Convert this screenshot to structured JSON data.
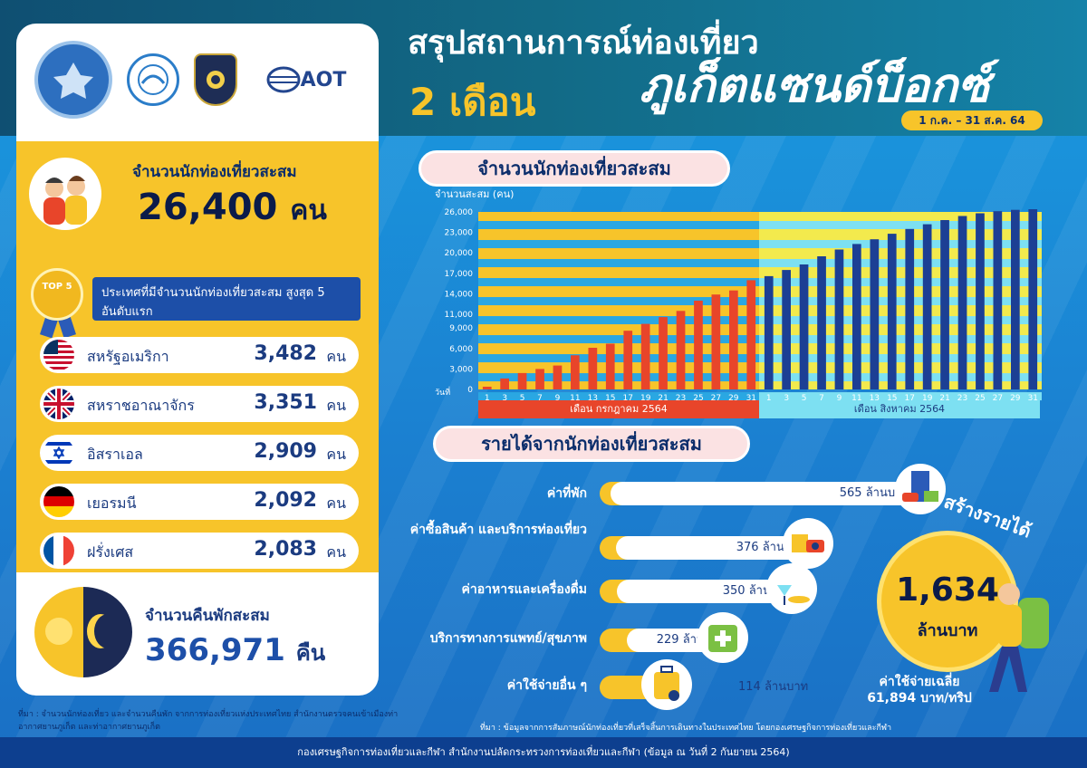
{
  "title": {
    "line1": "สรุปสถานการณ์ท่องเที่ยว",
    "months": "2 เดือน",
    "sandbox": "ภูเก็ตแซนด์บ็อกซ์",
    "date_range": "1 ก.ค. – 31 ส.ค. 64"
  },
  "logos": {
    "aot": "AOT"
  },
  "tourists": {
    "label": "จำนวนนักท่องเที่ยวสะสม",
    "value": "26,400",
    "unit": "คน"
  },
  "top5": {
    "badge": "TOP 5",
    "banner": "ประเทศที่มีจำนวนนักท่องเที่ยวสะสม สูงสุด 5 อันดับแรก",
    "countries": [
      {
        "name": "สหรัฐอเมริกา",
        "value": "3,482",
        "unit": "คน",
        "flag": "usa-flag"
      },
      {
        "name": "สหราชอาณาจักร",
        "value": "3,351",
        "unit": "คน",
        "flag": "uk-flag"
      },
      {
        "name": "อิสราเอล",
        "value": "2,909",
        "unit": "คน",
        "flag": "israel-flag"
      },
      {
        "name": "เยอรมนี",
        "value": "2,092",
        "unit": "คน",
        "flag": "germany-flag"
      },
      {
        "name": "ฝรั่งเศส",
        "value": "2,083",
        "unit": "คน",
        "flag": "france-flag"
      }
    ]
  },
  "nights": {
    "label": "จำนวนคืนพักสะสม",
    "value": "366,971",
    "unit": "คืน"
  },
  "source_left": "ที่มา : จำนวนนักท่องเที่ยว และจำนวนคืนพัก จากการท่องเที่ยวแห่งประเทศไทย สำนักงานตรวจคนเข้าเมืองท่าอากาศยานภูเก็ต และท่าอากาศยานภูเก็ต",
  "chart_section_title": "จำนวนนักท่องเที่ยวสะสม",
  "revenue_section_title": "รายได้จากนักท่องเที่ยวสะสม",
  "chart_data": {
    "type": "bar",
    "ylabel": "จำนวนสะสม (คน)",
    "xlabel": "วันที่",
    "ylim": [
      0,
      26000
    ],
    "yticks": [
      "0",
      "3,000",
      "6,000",
      "9,000",
      "11,000",
      "14,000",
      "17,000",
      "20,000",
      "23,000",
      "26,000"
    ],
    "categories": [
      "1",
      "3",
      "5",
      "7",
      "9",
      "11",
      "13",
      "15",
      "17",
      "19",
      "21",
      "23",
      "25",
      "27",
      "29",
      "31",
      "1",
      "3",
      "5",
      "7",
      "9",
      "11",
      "13",
      "15",
      "17",
      "19",
      "21",
      "23",
      "25",
      "27",
      "29",
      "31"
    ],
    "series": [
      {
        "name": "เดือน กรกฎาคม 2564",
        "color": "#e8452a",
        "values": [
          400,
          1600,
          2400,
          3000,
          3500,
          5000,
          6100,
          6700,
          8600,
          9600,
          10600,
          11500,
          13000,
          13900,
          14500,
          16000,
          null,
          null,
          null,
          null,
          null,
          null,
          null,
          null,
          null,
          null,
          null,
          null,
          null,
          null,
          null,
          null
        ]
      },
      {
        "name": "เดือน สิงหาคม 2564",
        "color": "#1c3f94",
        "values": [
          null,
          null,
          null,
          null,
          null,
          null,
          null,
          null,
          null,
          null,
          null,
          null,
          null,
          null,
          null,
          null,
          16600,
          17500,
          18300,
          19500,
          20500,
          21300,
          22000,
          22800,
          23500,
          24200,
          24800,
          25400,
          25800,
          26100,
          26300,
          26400
        ]
      }
    ]
  },
  "revenue": {
    "items": [
      {
        "label": "ค่าที่พัก",
        "value": "565 ล้านบาท",
        "amount": 565,
        "icon": "hotel-icon"
      },
      {
        "label": "ค่าซื้อสินค้า และบริการท่องเที่ยว",
        "value": "376  ล้านบาท",
        "amount": 376,
        "icon": "shopping-icon"
      },
      {
        "label": "ค่าอาหารและเครื่องดื่ม",
        "value": "350 ล้านบาท",
        "amount": 350,
        "icon": "food-icon"
      },
      {
        "label": "บริการทางการแพทย์/สุขภาพ",
        "value": "229 ล้านบาท",
        "amount": 229,
        "icon": "medical-icon"
      },
      {
        "label": "ค่าใช้จ่ายอื่น ๆ",
        "value": "114 ล้านบาท",
        "amount": 114,
        "icon": "luggage-icon"
      }
    ],
    "total_arc": "สร้างรายได้",
    "total_value": "1,634",
    "total_unit": "ล้านบาท",
    "avg_label": "ค่าใช้จ่ายเฉลี่ย",
    "avg_value": "61,894 บาท/ทริป"
  },
  "source_right": "ที่มา : ข้อมูลจากการสัมภาษณ์นักท่องเที่ยวที่เสร็จสิ้นการเดินทางในประเทศไทย โดยกองเศรษฐกิจการท่องเที่ยวและกีฬา",
  "footer": "กองเศรษฐกิจการท่องเที่ยวและกีฬา สำนักงานปลัดกระทรวงการท่องเที่ยวและกีฬา (ข้อมูล ณ วันที่ 2 กันยายน 2564)"
}
